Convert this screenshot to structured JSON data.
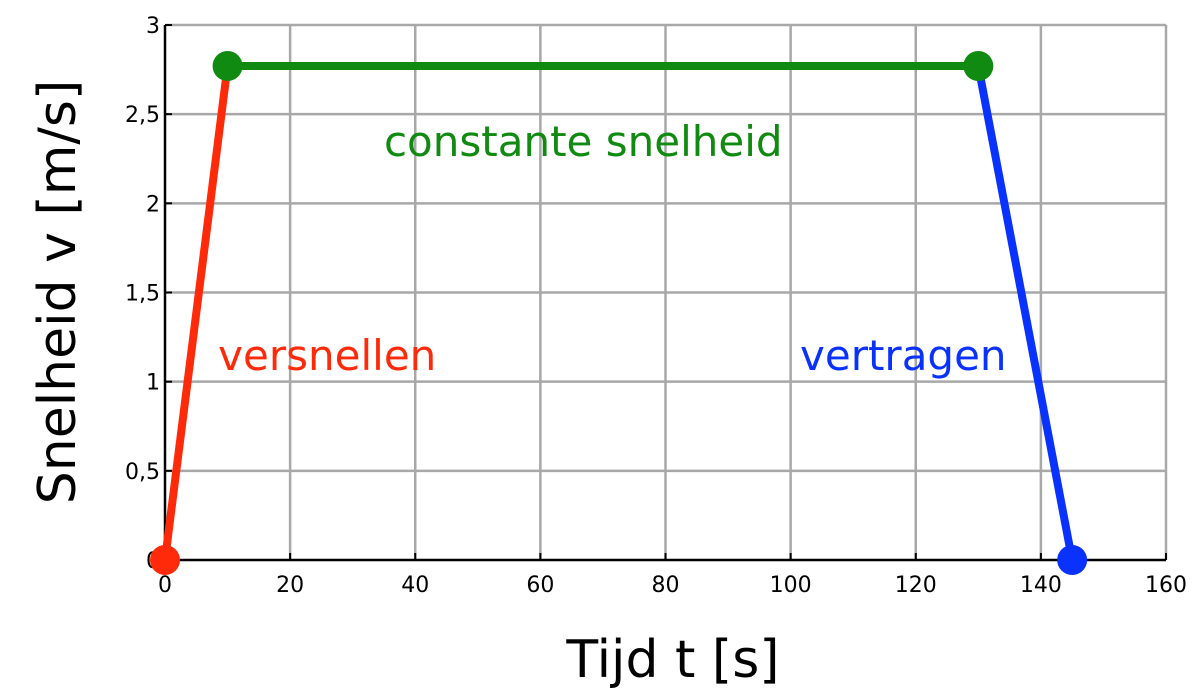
{
  "chart_data": {
    "type": "line",
    "title": "",
    "xlabel": "Tijd t [s]",
    "ylabel": "Snelheid v [m/s]",
    "xlim": [
      0,
      160
    ],
    "ylim": [
      0,
      3
    ],
    "xticks": [
      0,
      20,
      40,
      60,
      80,
      100,
      120,
      140,
      160
    ],
    "yticks": [
      0,
      0.5,
      1,
      1.5,
      2,
      2.5,
      3
    ],
    "xtick_labels": [
      "0",
      "20",
      "40",
      "60",
      "80",
      "100",
      "120",
      "140",
      "160"
    ],
    "ytick_labels": [
      "0",
      "0,5",
      "1",
      "1,5",
      "2",
      "2,5",
      "3"
    ],
    "grid": true,
    "segments": [
      {
        "label": "versnellen",
        "color": "#ff2a0a",
        "x": [
          0,
          10
        ],
        "y": [
          0,
          2.77
        ]
      },
      {
        "label": "constante snelheid",
        "color": "#118a11",
        "x": [
          10,
          130
        ],
        "y": [
          2.77,
          2.77
        ]
      },
      {
        "label": "vertragen",
        "color": "#0a32ff",
        "x": [
          130,
          145
        ],
        "y": [
          2.77,
          0
        ]
      }
    ],
    "points": [
      {
        "x": 0,
        "y": 0,
        "color": "#ff2a0a"
      },
      {
        "x": 10,
        "y": 2.77,
        "color": "#118a11"
      },
      {
        "x": 130,
        "y": 2.77,
        "color": "#118a11"
      },
      {
        "x": 145,
        "y": 0,
        "color": "#0a32ff"
      }
    ],
    "annotations": [
      {
        "text": "constante snelheid",
        "x": 35,
        "y": 2.35,
        "color": "#118a11"
      },
      {
        "text": "versnellen",
        "x": 8.5,
        "y": 1.15,
        "color": "#ff2a0a"
      },
      {
        "text": "vertragen",
        "x": 101.5,
        "y": 1.15,
        "color": "#0a32ff"
      }
    ]
  }
}
